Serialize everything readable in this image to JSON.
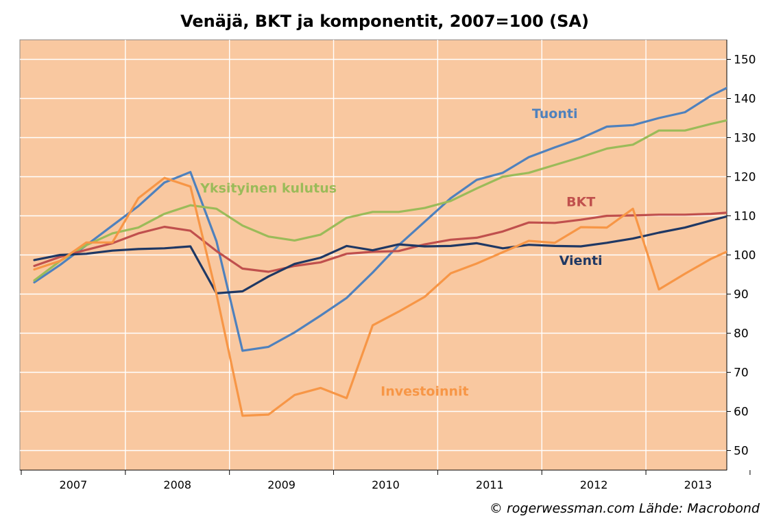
{
  "chart_data": {
    "type": "line",
    "title": "Venäjä, BKT ja komponentit, 2007=100 (SA)",
    "source": "© rogerwessman.com Lähde: Macrobond",
    "xlabel": "",
    "ylabel": "",
    "ylim": [
      45,
      155
    ],
    "y_ticks": [
      50,
      60,
      70,
      80,
      90,
      100,
      110,
      120,
      130,
      140,
      150
    ],
    "y_axis_position": "right",
    "grid": true,
    "background": "#F9C8A0",
    "year_labels": [
      "2007",
      "2008",
      "2009",
      "2010",
      "2011",
      "2012",
      "2013"
    ],
    "quarters": [
      "2007Q1",
      "2007Q2",
      "2007Q3",
      "2007Q4",
      "2008Q1",
      "2008Q2",
      "2008Q3",
      "2008Q4",
      "2009Q1",
      "2009Q2",
      "2009Q3",
      "2009Q4",
      "2010Q1",
      "2010Q2",
      "2010Q3",
      "2010Q4",
      "2011Q1",
      "2011Q2",
      "2011Q3",
      "2011Q4",
      "2012Q1",
      "2012Q2",
      "2012Q3",
      "2012Q4",
      "2013Q1",
      "2013Q2",
      "2013Q3",
      "2013Q4"
    ],
    "series": [
      {
        "name": "Tuonti",
        "color": "#4F81BD",
        "label_anchor_index": 20,
        "label_value": 135,
        "values": [
          93,
          97.5,
          102.5,
          107.5,
          112.5,
          118.5,
          121.2,
          103.5,
          75.5,
          76.5,
          80.2,
          84.5,
          89,
          95.5,
          102.5,
          108.5,
          114.5,
          119.2,
          121,
          125,
          127.5,
          129.8,
          132.8,
          133.2,
          135,
          136.5,
          140.7,
          144
        ]
      },
      {
        "name": "Yksityinen kulutus",
        "color": "#9BBB59",
        "label_anchor_index": 9,
        "label_value": 116,
        "values": [
          93.5,
          98.5,
          102.5,
          105.5,
          107,
          110.5,
          112.7,
          111.8,
          107.5,
          104.7,
          103.7,
          105.2,
          109.5,
          111,
          111,
          112,
          113.8,
          117,
          120,
          121,
          123,
          125,
          127.2,
          128.2,
          131.8,
          131.8,
          133.5,
          135
        ]
      },
      {
        "name": "BKT",
        "color": "#C0504D",
        "label_anchor_index": 21,
        "label_value": 112.5,
        "values": [
          97.2,
          99.5,
          101.3,
          103,
          105.5,
          107.2,
          106.2,
          101,
          96.5,
          95.7,
          97.2,
          98.1,
          100.3,
          100.8,
          101,
          102.7,
          103.9,
          104.4,
          106,
          108.3,
          108.2,
          109,
          110,
          110.1,
          110.3,
          110.3,
          110.5,
          111
        ]
      },
      {
        "name": "Vienti",
        "color": "#1F3864",
        "label_anchor_index": 21,
        "label_value": 97.5,
        "values": [
          98.7,
          100,
          100.3,
          101.1,
          101.5,
          101.7,
          102.2,
          90.2,
          90.7,
          94.5,
          97.7,
          99.3,
          102.3,
          101.2,
          102.7,
          102.2,
          102.3,
          103,
          101.7,
          102.6,
          102.3,
          102.2,
          103.1,
          104.2,
          105.7,
          107,
          108.8,
          110.5
        ]
      },
      {
        "name": "Investoinnit",
        "color": "#F79646",
        "label_anchor_index": 15,
        "label_value": 64,
        "values": [
          96.3,
          98.5,
          103.2,
          103.2,
          114.5,
          119.7,
          117.5,
          90,
          58.9,
          59.2,
          64.2,
          66,
          63.4,
          82,
          85.5,
          89.3,
          95.3,
          97.8,
          100.7,
          103.6,
          103.1,
          107.1,
          107,
          111.8,
          91.2,
          95.2,
          99,
          102
        ]
      }
    ]
  }
}
